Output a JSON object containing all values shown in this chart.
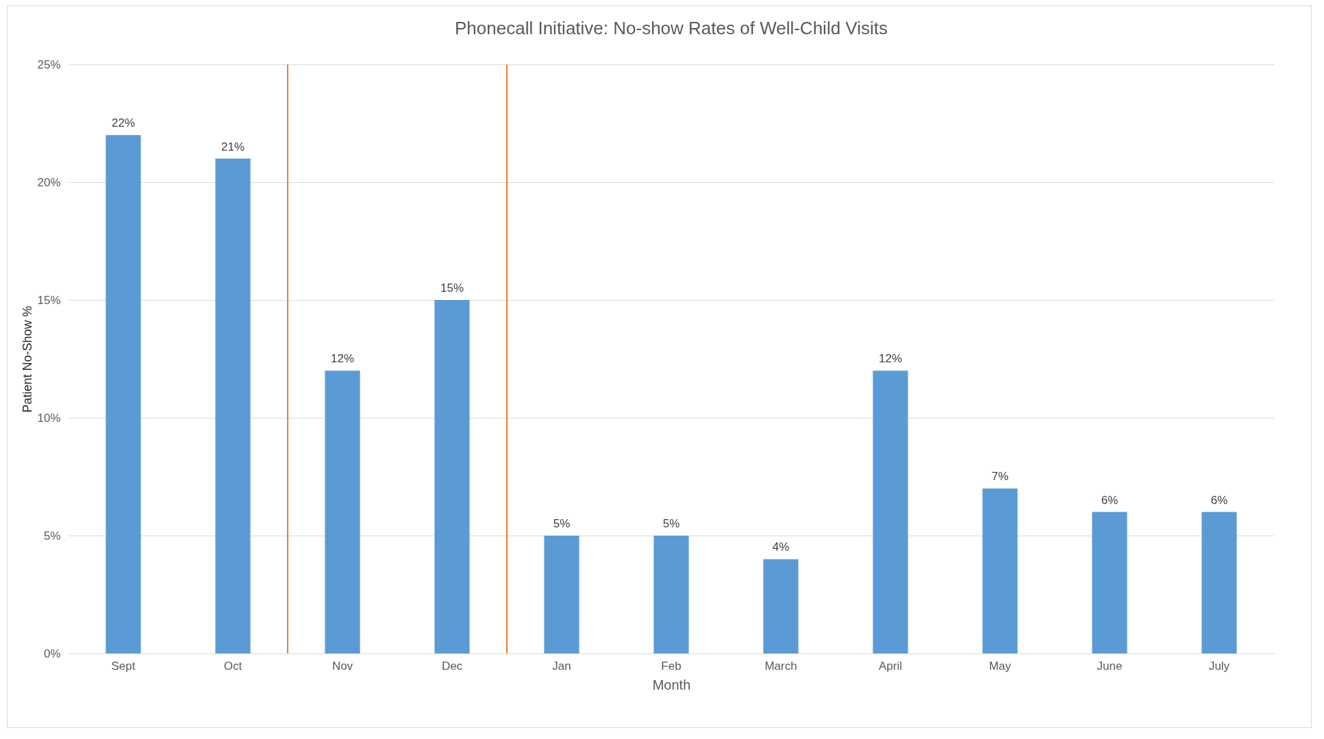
{
  "chart_data": {
    "type": "bar",
    "title": "Phonecall Initiative: No-show Rates of Well-Child Visits",
    "xlabel": "Month",
    "ylabel": "Patient No-Show %",
    "categories": [
      "Sept",
      "Oct",
      "Nov",
      "Dec",
      "Jan",
      "Feb",
      "March",
      "April",
      "May",
      "June",
      "July"
    ],
    "values": [
      22,
      21,
      12,
      15,
      5,
      5,
      4,
      12,
      7,
      6,
      6
    ],
    "value_labels": [
      "22%",
      "21%",
      "12%",
      "15%",
      "5%",
      "5%",
      "4%",
      "12%",
      "7%",
      "6%",
      "6%"
    ],
    "color": "#5b9bd5",
    "ylim": [
      0,
      25
    ],
    "yticks": [
      {
        "value": 0,
        "label": "0%"
      },
      {
        "value": 5,
        "label": "5%"
      },
      {
        "value": 10,
        "label": "10%"
      },
      {
        "value": 15,
        "label": "15%"
      },
      {
        "value": 20,
        "label": "20%"
      },
      {
        "value": 25,
        "label": "25%"
      }
    ],
    "grid": "y"
  }
}
